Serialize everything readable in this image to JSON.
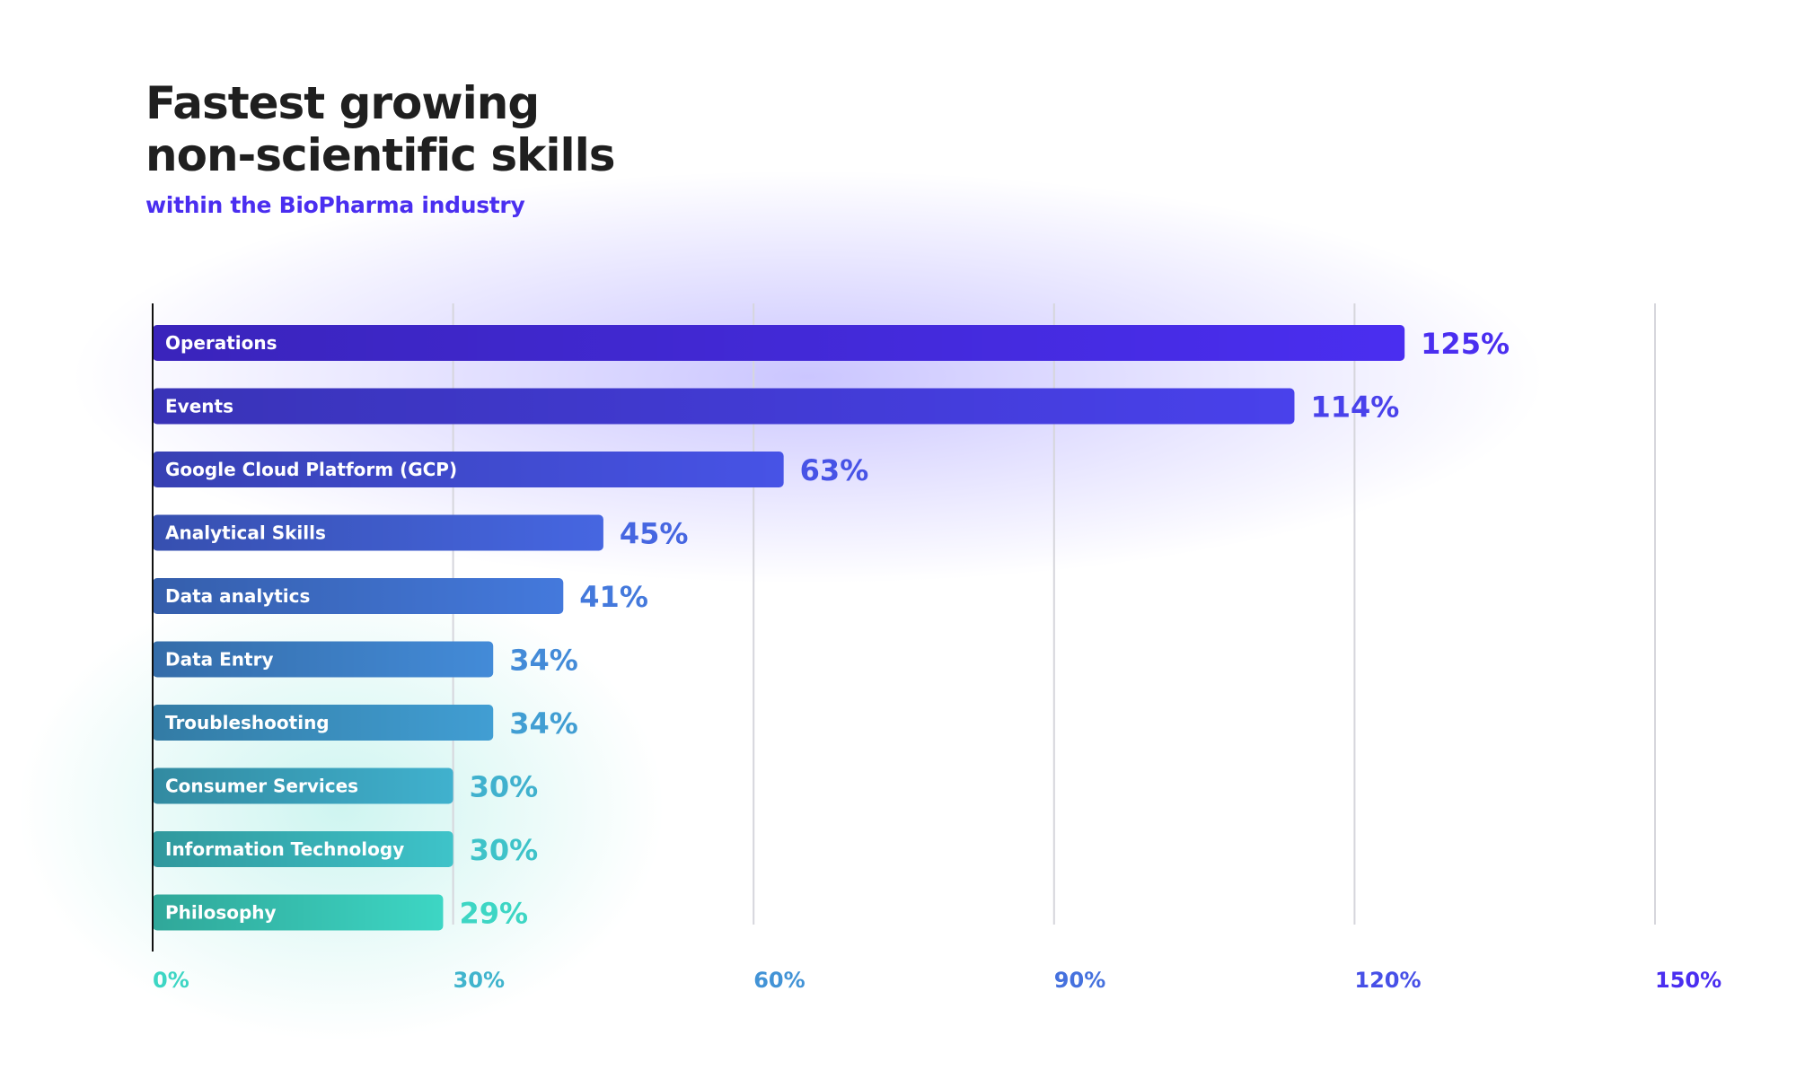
{
  "header": {
    "title_line1": "Fastest growing",
    "title_line2": "non-scientific skills",
    "subtitle": "within the BioPharma industry"
  },
  "colors": {
    "accent_top": "#4a2ef0",
    "accent_bottom": "#3dd6c4",
    "grid": "#d6d6dc",
    "axis": "#111111",
    "title": "#1f1f1f"
  },
  "chart_data": {
    "type": "bar",
    "orientation": "horizontal",
    "title": "Fastest growing non-scientific skills",
    "subtitle": "within the BioPharma industry",
    "xlabel": "",
    "ylabel": "",
    "xlim": [
      0,
      150
    ],
    "x_ticks": [
      0,
      30,
      60,
      90,
      120,
      150
    ],
    "x_tick_labels": [
      "0%",
      "30%",
      "60%",
      "90%",
      "120%",
      "150%"
    ],
    "grid": "vertical",
    "legend": "none",
    "categories": [
      "Operations",
      "Events",
      "Google Cloud Platform (GCP)",
      "Analytical Skills",
      "Data analytics",
      "Data Entry",
      "Troubleshooting",
      "Consumer Services",
      "Information Technology",
      "Philosophy"
    ],
    "values": [
      125,
      114,
      63,
      45,
      41,
      34,
      34,
      30,
      30,
      29
    ],
    "value_labels": [
      "125%",
      "114%",
      "63%",
      "45%",
      "41%",
      "34%",
      "34%",
      "30%",
      "30%",
      "29%"
    ]
  }
}
